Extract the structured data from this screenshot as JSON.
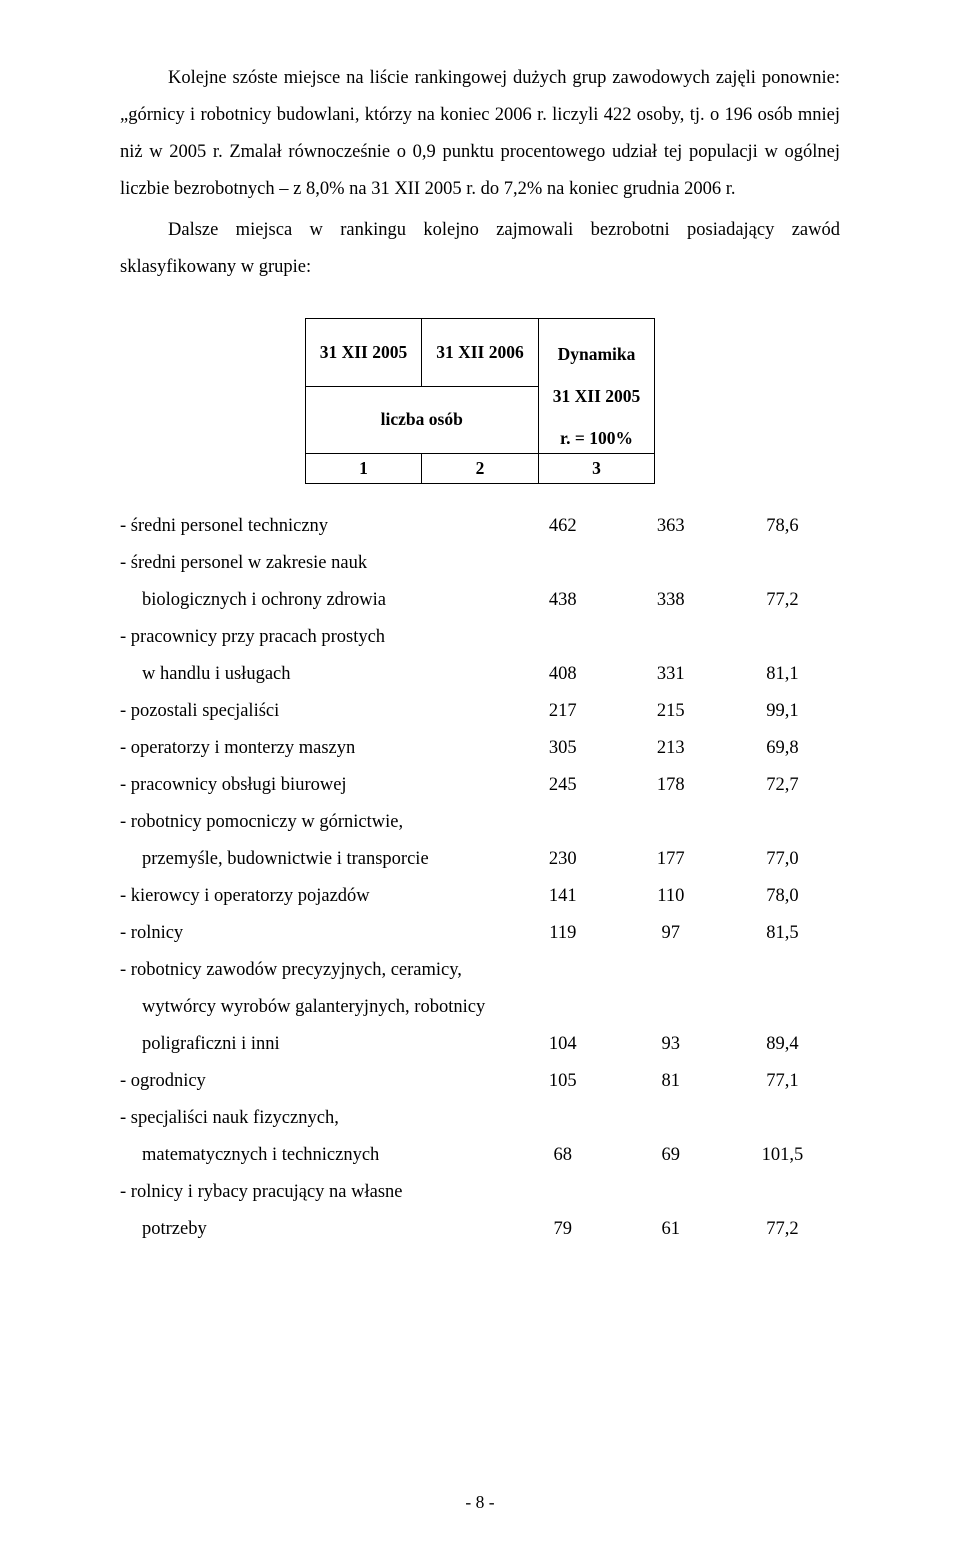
{
  "paragraphs": {
    "p1": "Kolejne szóste miejsce na liście rankingowej dużych grup zawodowych zajęli ponownie: „górnicy i robotnicy budowlani, którzy na koniec 2006 r. liczyli 422 osoby, tj. o 196 osób mniej niż w 2005 r. Zmalał równocześnie o 0,9 punktu procentowego udział tej populacji w ogólnej liczbie bezrobotnych – z 8,0% na 31 XII 2005 r. do 7,2% na koniec grudnia 2006 r.",
    "p2": "Dalsze miejsca w rankingu kolejno zajmowali bezrobotni posiadający zawód sklasyfikowany w grupie:"
  },
  "header": {
    "col1": "31 XII 2005",
    "col2": "31 XII 2006",
    "col3_line1": "Dynamika",
    "col3_line2": "31 XII 2005",
    "col3_line3": "r. = 100%",
    "sub12": "liczba osób",
    "n1": "1",
    "n2": "2",
    "n3": "3"
  },
  "rows": [
    {
      "label": "- średni personel techniczny",
      "sub": "",
      "c1": "462",
      "c2": "363",
      "c3": "78,6"
    },
    {
      "label": "- średni personel w zakresie nauk",
      "sub": "biologicznych i ochrony zdrowia",
      "c1": "438",
      "c2": "338",
      "c3": "77,2"
    },
    {
      "label": "- pracownicy przy pracach prostych",
      "sub": "w handlu i usługach",
      "c1": "408",
      "c2": "331",
      "c3": "81,1"
    },
    {
      "label": "- pozostali specjaliści",
      "sub": "",
      "c1": "217",
      "c2": "215",
      "c3": "99,1"
    },
    {
      "label": "- operatorzy i monterzy maszyn",
      "sub": "",
      "c1": "305",
      "c2": "213",
      "c3": "69,8"
    },
    {
      "label": "- pracownicy obsługi biurowej",
      "sub": "",
      "c1": "245",
      "c2": "178",
      "c3": "72,7"
    },
    {
      "label": "- robotnicy pomocniczy w górnictwie,",
      "sub": "przemyśle, budownictwie i transporcie",
      "c1": "230",
      "c2": "177",
      "c3": "77,0"
    },
    {
      "label": "- kierowcy i operatorzy pojazdów",
      "sub": "",
      "c1": "141",
      "c2": "110",
      "c3": "78,0"
    },
    {
      "label": "- rolnicy",
      "sub": "",
      "c1": "119",
      "c2": "97",
      "c3": "81,5"
    },
    {
      "label": "- robotnicy zawodów precyzyjnych, ceramicy,",
      "sub": "wytwórcy wyrobów galanteryjnych, robotnicy",
      "sub2": "poligraficzni i inni",
      "c1": "104",
      "c2": "93",
      "c3": "89,4"
    },
    {
      "label": "- ogrodnicy",
      "sub": "",
      "c1": "105",
      "c2": "81",
      "c3": "77,1"
    },
    {
      "label": "- specjaliści nauk fizycznych,",
      "sub": "matematycznych i technicznych",
      "c1": "68",
      "c2": "69",
      "c3": "101,5"
    },
    {
      "label": "- rolnicy i rybacy pracujący na własne",
      "sub": "potrzeby",
      "c1": "79",
      "c2": "61",
      "c3": "77,2"
    }
  ],
  "footer": "- 8 -"
}
